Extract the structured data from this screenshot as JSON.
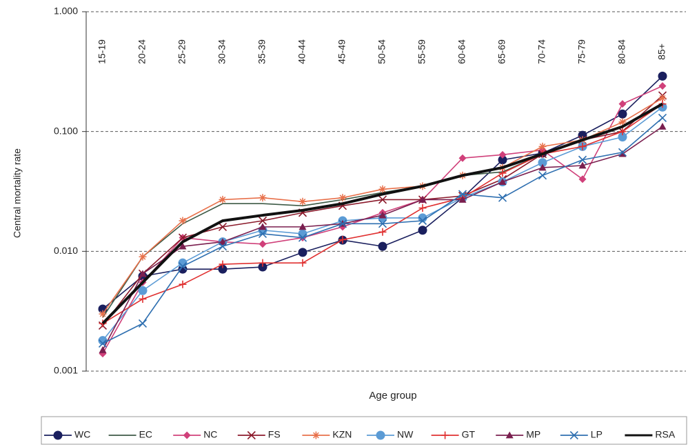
{
  "chart_data": {
    "type": "line",
    "x_label": "Age group",
    "y_label": "Central mortality rate",
    "log_scale": true,
    "grid": true,
    "legend": "bottom",
    "categories": [
      "15-19",
      "20-24",
      "25-29",
      "30-34",
      "35-39",
      "40-44",
      "45-49",
      "50-54",
      "55-59",
      "60-64",
      "65-69",
      "70-74",
      "75-79",
      "80-84",
      "85+"
    ],
    "ylim": [
      0.001,
      1
    ],
    "yticks": [
      {
        "value": 0.001,
        "label": "0.001"
      },
      {
        "value": 0.01,
        "label": "0.010"
      },
      {
        "value": 0.1,
        "label": "0.100"
      },
      {
        "value": 1,
        "label": "1.000"
      }
    ],
    "series": [
      {
        "name": "WC",
        "color": "#1a1f5e",
        "marker": "circle",
        "values": [
          0.0033,
          0.0062,
          0.0071,
          0.0071,
          0.0074,
          0.0098,
          0.0124,
          0.011,
          0.015,
          0.028,
          0.058,
          0.066,
          0.093,
          0.14,
          0.29
        ]
      },
      {
        "name": "EC",
        "color": "#3d5a46",
        "marker": "none",
        "values": [
          0.0028,
          0.009,
          0.017,
          0.025,
          0.025,
          0.024,
          0.027,
          0.031,
          0.035,
          0.043,
          0.046,
          0.065,
          0.085,
          0.11,
          0.17
        ]
      },
      {
        "name": "NC",
        "color": "#d0407a",
        "marker": "diamond",
        "values": [
          0.0014,
          0.0055,
          0.013,
          0.012,
          0.0115,
          0.013,
          0.016,
          0.021,
          0.027,
          0.06,
          0.064,
          0.07,
          0.04,
          0.17,
          0.24
        ]
      },
      {
        "name": "FS",
        "color": "#8b1a2b",
        "marker": "x",
        "values": [
          0.0024,
          0.0065,
          0.013,
          0.016,
          0.018,
          0.021,
          0.024,
          0.027,
          0.027,
          0.029,
          0.04,
          0.065,
          0.085,
          0.1,
          0.2
        ]
      },
      {
        "name": "KZN",
        "color": "#e8704a",
        "marker": "star",
        "values": [
          0.003,
          0.009,
          0.018,
          0.027,
          0.028,
          0.026,
          0.028,
          0.033,
          0.035,
          0.043,
          0.05,
          0.075,
          0.085,
          0.12,
          0.19
        ]
      },
      {
        "name": "NW",
        "color": "#5b9bd5",
        "marker": "circle",
        "values": [
          0.0018,
          0.0047,
          0.008,
          0.012,
          0.015,
          0.014,
          0.018,
          0.019,
          0.019,
          0.028,
          0.038,
          0.055,
          0.075,
          0.09,
          0.16
        ]
      },
      {
        "name": "GT",
        "color": "#e03030",
        "marker": "plus",
        "values": [
          0.0025,
          0.004,
          0.0053,
          0.0078,
          0.008,
          0.008,
          0.0125,
          0.0145,
          0.023,
          0.028,
          0.045,
          0.065,
          0.075,
          0.1,
          0.17
        ]
      },
      {
        "name": "MP",
        "color": "#7a1f4f",
        "marker": "triangle",
        "values": [
          0.0015,
          0.0065,
          0.011,
          0.012,
          0.016,
          0.016,
          0.017,
          0.02,
          0.027,
          0.027,
          0.038,
          0.05,
          0.052,
          0.065,
          0.11
        ]
      },
      {
        "name": "LP",
        "color": "#2e6fb0",
        "marker": "x",
        "values": [
          0.0017,
          0.0025,
          0.0075,
          0.011,
          0.014,
          0.013,
          0.017,
          0.017,
          0.018,
          0.03,
          0.028,
          0.043,
          0.058,
          0.067,
          0.13
        ]
      },
      {
        "name": "RSA",
        "color": "#111111",
        "marker": "none",
        "values": [
          0.0025,
          0.0055,
          0.012,
          0.018,
          0.02,
          0.022,
          0.025,
          0.03,
          0.035,
          0.043,
          0.05,
          0.065,
          0.085,
          0.11,
          0.17
        ]
      }
    ]
  }
}
